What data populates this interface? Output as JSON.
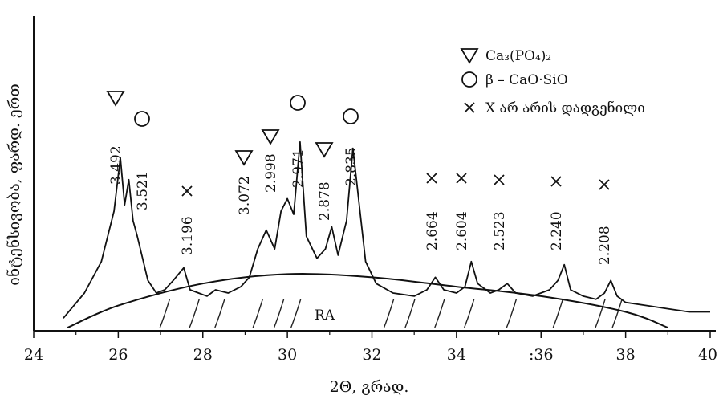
{
  "chart_data": {
    "type": "line",
    "title": "",
    "xlabel": "2Θ, გრად.",
    "ylabel": "ინტენსივობა, ფარდ. ერთ",
    "xlim": [
      24,
      40
    ],
    "ylim": [
      0,
      100
    ],
    "x_ticks": [
      "24",
      "26",
      "28",
      "30",
      "32",
      "34",
      ":36",
      "38",
      "40"
    ],
    "x_tick_values": [
      24,
      26,
      28,
      30,
      32,
      34,
      36,
      38,
      40
    ],
    "series": [
      {
        "name": "",
        "x": [
          24.7,
          25.2,
          25.6,
          25.9,
          26.05,
          26.15,
          26.25,
          26.35,
          26.45,
          26.7,
          26.9,
          27.1,
          27.3,
          27.55,
          27.7,
          27.9,
          28.1,
          28.3,
          28.6,
          28.9,
          29.1,
          29.3,
          29.5,
          29.7,
          29.85,
          30.0,
          30.15,
          30.3,
          30.45,
          30.7,
          30.9,
          31.05,
          31.2,
          31.4,
          31.55,
          31.7,
          31.85,
          32.1,
          32.5,
          33.0,
          33.3,
          33.5,
          33.7,
          34.0,
          34.2,
          34.35,
          34.5,
          34.8,
          35.0,
          35.2,
          35.4,
          35.8,
          36.2,
          36.4,
          36.55,
          36.7,
          37.0,
          37.3,
          37.5,
          37.65,
          37.8,
          38.0,
          38.5,
          39.0,
          39.5,
          40.0
        ],
        "y": [
          4,
          12,
          22,
          38,
          55,
          40,
          48,
          35,
          30,
          16,
          12,
          13,
          16,
          20,
          13,
          12,
          11,
          13,
          12,
          14,
          17,
          26,
          32,
          26,
          38,
          42,
          37,
          60,
          30,
          23,
          26,
          33,
          24,
          35,
          58,
          40,
          22,
          15,
          12,
          11,
          13,
          17,
          13,
          12,
          14,
          22,
          15,
          12,
          13,
          15,
          12,
          11,
          13,
          16,
          21,
          13,
          11,
          10,
          12,
          16,
          11,
          9,
          8,
          7,
          6,
          6
        ]
      }
    ],
    "background_curve": {
      "name": "RA",
      "x": [
        24.8,
        26,
        28,
        30,
        32,
        34,
        36,
        38,
        39
      ],
      "y": [
        1,
        8,
        15,
        18,
        17,
        14,
        11,
        6,
        1
      ]
    },
    "peak_labels": [
      {
        "d": "3.492",
        "x": 26.0,
        "marker": "triangle"
      },
      {
        "d": "3.521",
        "x": 26.4,
        "marker": "circle"
      },
      {
        "d": "3.196",
        "x": 27.6,
        "marker": "x"
      },
      {
        "d": "3.072",
        "x": 29.3,
        "marker": "triangle"
      },
      {
        "d": "2.998",
        "x": 29.8,
        "marker": "triangle"
      },
      {
        "d": "2.971",
        "x": 30.3,
        "marker": "circle"
      },
      {
        "d": "2.878",
        "x": 31.1,
        "marker": "triangle"
      },
      {
        "d": "2.835",
        "x": 31.6,
        "marker": "circle"
      },
      {
        "d": "2.664",
        "x": 33.5,
        "marker": "x"
      },
      {
        "d": "2.604",
        "x": 34.3,
        "marker": "x"
      },
      {
        "d": "2.523",
        "x": 35.2,
        "marker": "x"
      },
      {
        "d": "2.240",
        "x": 36.5,
        "marker": "x"
      },
      {
        "d": "2.208",
        "x": 37.6,
        "marker": "x"
      }
    ],
    "legend": [
      {
        "marker": "triangle",
        "label": "Ca₃(PO₄)₂"
      },
      {
        "marker": "circle",
        "label": "β – CaO·SiO"
      },
      {
        "marker": "x",
        "label": "X არ არის დადგენილი"
      }
    ],
    "legend_position": "top-right",
    "area_annotation": "RA",
    "grid": false
  }
}
